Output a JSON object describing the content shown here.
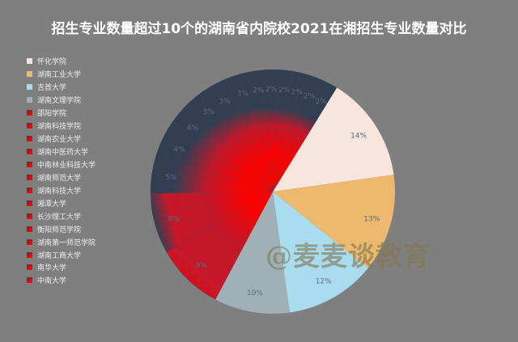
{
  "title": "招生专业数量超过10个的湖南省内院校2021在湘招生专业数量对比",
  "watermark": "@麦麦谈教育",
  "colors": {
    "background": "#7f7f7f",
    "title": "#ffffff",
    "red_inner": "#ff0000",
    "navy_outer": "#323f52",
    "label_text": "#5d6b78"
  },
  "chart_data": {
    "type": "pie",
    "title": "招生专业数量超过10个的湖南省内院校2021在湘招生专业数量对比",
    "start_angle_deg_clockwise_from_top": 31.6,
    "direction": "clockwise",
    "legend_position": "left",
    "labels_show": "percent",
    "slices": [
      {
        "name": "怀化学院",
        "percent": 14,
        "color": "#f8e5de",
        "style": "solid"
      },
      {
        "name": "湖南工业大学",
        "percent": 13,
        "color": "#ecb96f",
        "style": "solid"
      },
      {
        "name": "吉首大学",
        "percent": 12,
        "color": "#a9dcef",
        "style": "solid"
      },
      {
        "name": "湖南文理学院",
        "percent": 10,
        "color": "#9fb0b7",
        "style": "solid"
      },
      {
        "name": "邵阳学院",
        "percent": 9,
        "color": "#ff0000",
        "style": "gradient"
      },
      {
        "name": "湖南科技学院",
        "percent": 8,
        "color": "#ff0000",
        "style": "gradient"
      },
      {
        "name": "湖南农业大学",
        "percent": 5,
        "color": "#ff0000",
        "style": "gradient"
      },
      {
        "name": "湖南中医药大学",
        "percent": 4,
        "color": "#ff0000",
        "style": "gradient"
      },
      {
        "name": "中南林业科技大学",
        "percent": 4,
        "color": "#ff0000",
        "style": "gradient"
      },
      {
        "name": "湖南师范大学",
        "percent": 3,
        "color": "#ff0000",
        "style": "gradient"
      },
      {
        "name": "湖南科技大学",
        "percent": 3,
        "color": "#ff0000",
        "style": "gradient"
      },
      {
        "name": "湘潭大学",
        "percent": 3,
        "color": "#ff0000",
        "style": "gradient"
      },
      {
        "name": "长沙理工大学",
        "percent": 2,
        "color": "#ff0000",
        "style": "gradient"
      },
      {
        "name": "衡阳师范学院",
        "percent": 2,
        "color": "#ff0000",
        "style": "gradient"
      },
      {
        "name": "湖南第一师范学院",
        "percent": 2,
        "color": "#ff0000",
        "style": "gradient"
      },
      {
        "name": "湖南工商大学",
        "percent": 2,
        "color": "#ff0000",
        "style": "gradient"
      },
      {
        "name": "南华大学",
        "percent": 2,
        "color": "#ff0000",
        "style": "gradient"
      },
      {
        "name": "中南大学",
        "percent": 2,
        "color": "#ff0000",
        "style": "gradient"
      }
    ]
  },
  "legend": {
    "items": [
      {
        "label": "怀化学院",
        "color": "#f8e5de"
      },
      {
        "label": "湖南工业大学",
        "color": "#ecb96f"
      },
      {
        "label": "吉首大学",
        "color": "#a9dcef"
      },
      {
        "label": "湖南文理学院",
        "color": "#9fb0b7"
      },
      {
        "label": "邵阳学院",
        "color": "#e0101a"
      },
      {
        "label": "湖南科技学院",
        "color": "#c8182a"
      },
      {
        "label": "湖南农业大学",
        "color": "#c8182a"
      },
      {
        "label": "湖南中医药大学",
        "color": "#c8182a"
      },
      {
        "label": "中南林业科技大学",
        "color": "#c8182a"
      },
      {
        "label": "湖南师范大学",
        "color": "#c8182a"
      },
      {
        "label": "湖南科技大学",
        "color": "#c8182a"
      },
      {
        "label": "湘潭大学",
        "color": "#c8182a"
      },
      {
        "label": "长沙理工大学",
        "color": "#c8182a"
      },
      {
        "label": "衡阳师范学院",
        "color": "#c8182a"
      },
      {
        "label": "湖南第一师范学院",
        "color": "#c8182a"
      },
      {
        "label": "湖南工商大学",
        "color": "#c8182a"
      },
      {
        "label": "南华大学",
        "color": "#c8182a"
      },
      {
        "label": "中南大学",
        "color": "#c8182a"
      }
    ]
  }
}
